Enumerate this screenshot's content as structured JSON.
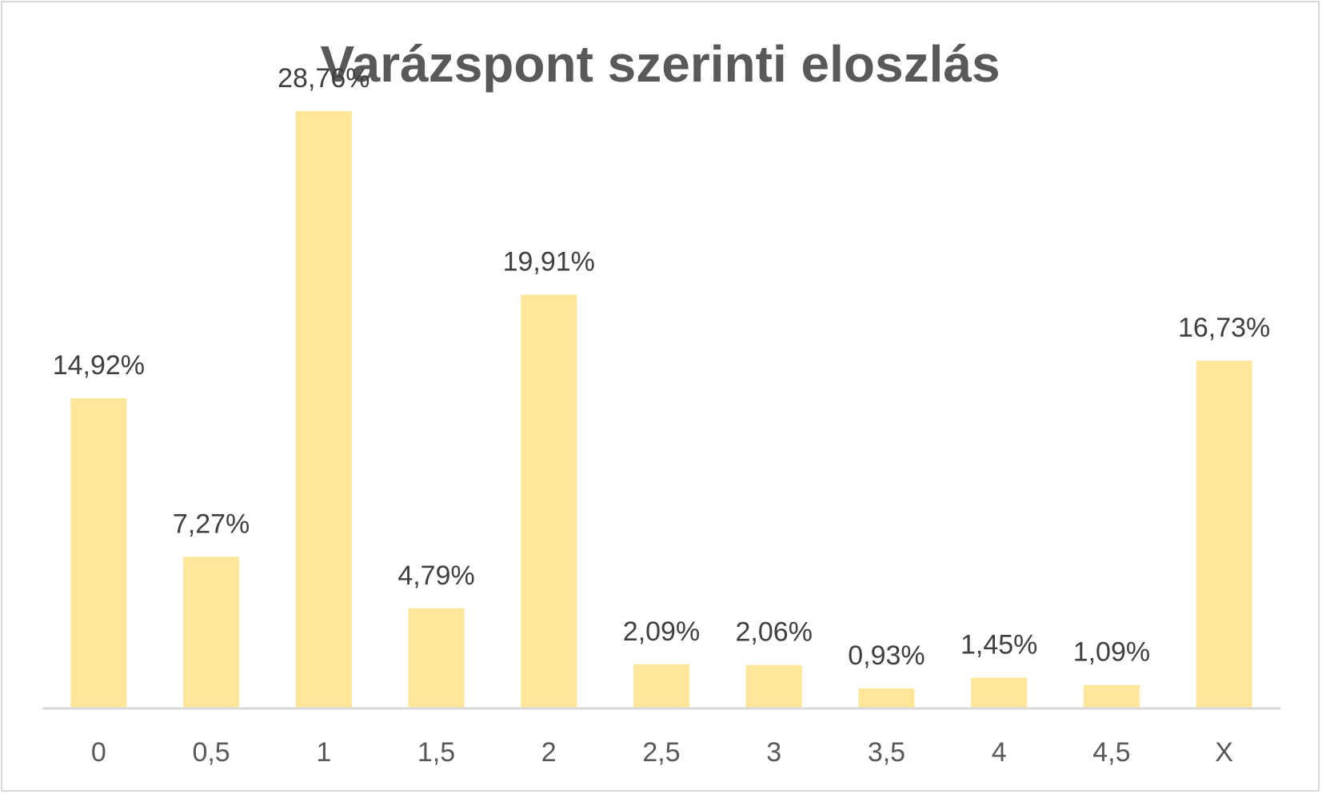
{
  "chart_data": {
    "type": "bar",
    "title": "Varázspont szerinti eloszlás",
    "xlabel": "",
    "ylabel": "",
    "categories": [
      "0",
      "0,5",
      "1",
      "1,5",
      "2",
      "2,5",
      "3",
      "3,5",
      "4",
      "4,5",
      "X"
    ],
    "values": [
      14.92,
      7.27,
      28.76,
      4.79,
      19.91,
      2.09,
      2.06,
      0.93,
      1.45,
      1.09,
      16.73
    ],
    "data_labels": [
      "14,92%",
      "7,27%",
      "28,76%",
      "4,79%",
      "19,91%",
      "2,09%",
      "2,06%",
      "0,93%",
      "1,45%",
      "1,09%",
      "16,73%"
    ],
    "unit": "%",
    "ylim": [
      0,
      32
    ],
    "grid": false,
    "legend": "none",
    "colors": {
      "bar": "#ffe699",
      "axis": "#d9d9d9",
      "title": "#595959",
      "label": "#404040"
    }
  }
}
